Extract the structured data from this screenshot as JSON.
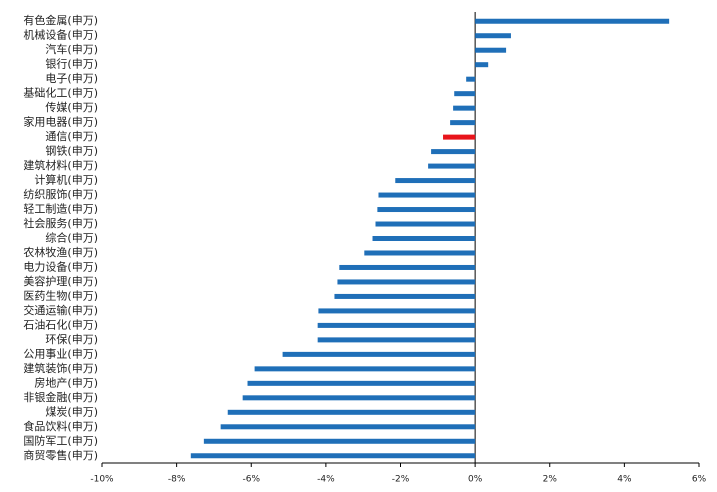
{
  "chart_data": {
    "type": "barh",
    "categories": [
      "有色金属(申万)",
      "机械设备(申万)",
      "汽车(申万)",
      "银行(申万)",
      "电子(申万)",
      "基础化工(申万)",
      "传媒(申万)",
      "家用电器(申万)",
      "通信(申万)",
      "钢铁(申万)",
      "建筑材料(申万)",
      "计算机(申万)",
      "纺织服饰(申万)",
      "轻工制造(申万)",
      "社会服务(申万)",
      "综合(申万)",
      "农林牧渔(申万)",
      "电力设备(申万)",
      "美容护理(申万)",
      "医药生物(申万)",
      "交通运输(申万)",
      "石油石化(申万)",
      "环保(申万)",
      "公用事业(申万)",
      "建筑装饰(申万)",
      "房地产(申万)",
      "非银金融(申万)",
      "煤炭(申万)",
      "食品饮料(申万)",
      "国防军工(申万)",
      "商贸零售(申万)"
    ],
    "values": [
      5.2,
      0.96,
      0.83,
      0.35,
      -0.24,
      -0.56,
      -0.59,
      -0.67,
      -0.86,
      -1.18,
      -1.26,
      -2.14,
      -2.59,
      -2.62,
      -2.67,
      -2.75,
      -2.97,
      -3.64,
      -3.69,
      -3.77,
      -4.2,
      -4.22,
      -4.22,
      -5.16,
      -5.91,
      -6.1,
      -6.23,
      -6.63,
      -6.82,
      -7.27,
      -7.62
    ],
    "colors": [
      "#1f6fb8",
      "#1f6fb8",
      "#1f6fb8",
      "#1f6fb8",
      "#1f6fb8",
      "#1f6fb8",
      "#1f6fb8",
      "#1f6fb8",
      "#e8141b",
      "#1f6fb8",
      "#1f6fb8",
      "#1f6fb8",
      "#1f6fb8",
      "#1f6fb8",
      "#1f6fb8",
      "#1f6fb8",
      "#1f6fb8",
      "#1f6fb8",
      "#1f6fb8",
      "#1f6fb8",
      "#1f6fb8",
      "#1f6fb8",
      "#1f6fb8",
      "#1f6fb8",
      "#1f6fb8",
      "#1f6fb8",
      "#1f6fb8",
      "#1f6fb8",
      "#1f6fb8",
      "#1f6fb8",
      "#1f6fb8"
    ],
    "xlim": [
      -10,
      6
    ],
    "xticks": [
      {
        "value": -10,
        "label": "-10%"
      },
      {
        "value": -8,
        "label": "-8%"
      },
      {
        "value": -6,
        "label": "-6%"
      },
      {
        "value": -4,
        "label": "-4%"
      },
      {
        "value": -2,
        "label": "-2%"
      },
      {
        "value": 0,
        "label": "0%"
      },
      {
        "value": 2,
        "label": "2%"
      },
      {
        "value": 4,
        "label": "4%"
      },
      {
        "value": 6,
        "label": "6%"
      }
    ],
    "grid": false
  }
}
